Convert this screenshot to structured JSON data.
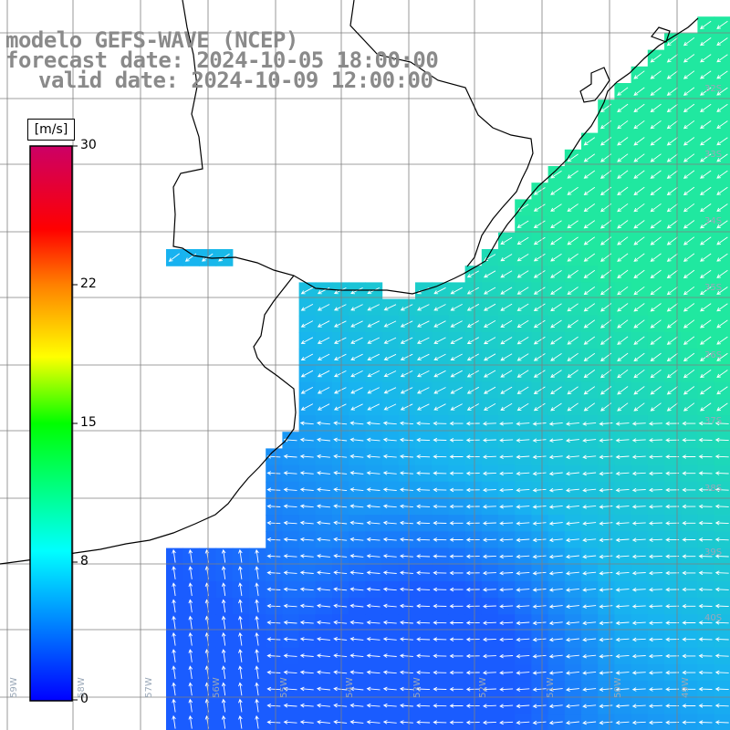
{
  "title": {
    "line1": "modelo GEFS-WAVE (NCEP)",
    "line2": "forecast date: 2024-10-05 18:00:00",
    "line3": "valid date: 2024-10-09 12:00:00"
  },
  "colorbar": {
    "units": "[m/s]",
    "ticks": [
      "30",
      "22",
      "15",
      "8",
      "0"
    ],
    "stops": [
      "#0000ff",
      "#00aaff",
      "#00ffff",
      "#00ff00",
      "#ffff00",
      "#ff8000",
      "#ff0000",
      "#cc0066"
    ]
  },
  "lat_labels": [
    "32S",
    "33S",
    "34S",
    "35S",
    "36S",
    "37S",
    "38S",
    "39S",
    "40S"
  ],
  "lon_labels": [
    "59W",
    "58W",
    "57W",
    "56W",
    "55W",
    "54W",
    "53W",
    "52W",
    "51W",
    "50W",
    "49W"
  ],
  "colors": {
    "land": "#ffffff",
    "coast": "#000000",
    "grid": "#7f7f7f",
    "arrow": "#ffffff",
    "speed_low": "#1a5cff",
    "speed_mid": "#18b4f0",
    "speed_high": "#20e8a0"
  }
}
